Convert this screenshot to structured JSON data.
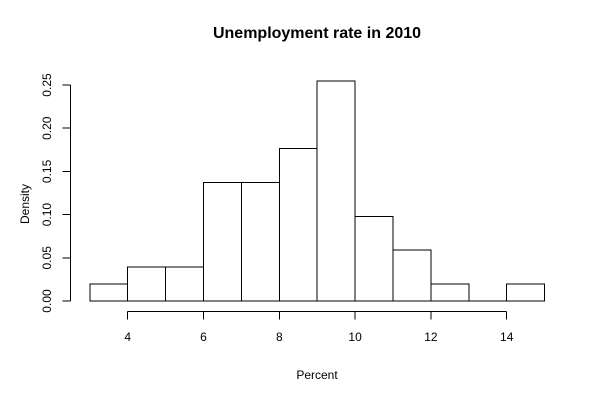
{
  "chart_data": {
    "type": "bar",
    "subtype": "histogram",
    "title": "Unemployment rate in 2010",
    "background": "#ffffff",
    "bar_fill": "#ffffff",
    "stroke_color": "#000000",
    "grid": false,
    "legend": false,
    "x_axis": {
      "label": "Percent",
      "range": [
        3,
        15
      ],
      "ticks": [
        {
          "value": 4,
          "label": "4"
        },
        {
          "value": 6,
          "label": "6"
        },
        {
          "value": 8,
          "label": "8"
        },
        {
          "value": 10,
          "label": "10"
        },
        {
          "value": 12,
          "label": "12"
        },
        {
          "value": 14,
          "label": "14"
        }
      ]
    },
    "y_axis": {
      "label": "Density",
      "range": [
        0,
        0.25
      ],
      "ticks": [
        {
          "value": 0.0,
          "label": "0.00"
        },
        {
          "value": 0.05,
          "label": "0.05"
        },
        {
          "value": 0.1,
          "label": "0.10"
        },
        {
          "value": 0.15,
          "label": "0.15"
        },
        {
          "value": 0.2,
          "label": "0.20"
        },
        {
          "value": 0.25,
          "label": "0.25"
        }
      ]
    },
    "bins": [
      {
        "from": 3,
        "to": 4,
        "density": 0.0196
      },
      {
        "from": 4,
        "to": 5,
        "density": 0.0392
      },
      {
        "from": 5,
        "to": 6,
        "density": 0.0392
      },
      {
        "from": 6,
        "to": 7,
        "density": 0.1373
      },
      {
        "from": 7,
        "to": 8,
        "density": 0.1373
      },
      {
        "from": 8,
        "to": 9,
        "density": 0.1765
      },
      {
        "from": 9,
        "to": 10,
        "density": 0.2549
      },
      {
        "from": 10,
        "to": 11,
        "density": 0.098
      },
      {
        "from": 11,
        "to": 12,
        "density": 0.0588
      },
      {
        "from": 12,
        "to": 13,
        "density": 0.0196
      },
      {
        "from": 13,
        "to": 14,
        "density": 0
      },
      {
        "from": 14,
        "to": 15,
        "density": 0.0196
      }
    ]
  }
}
